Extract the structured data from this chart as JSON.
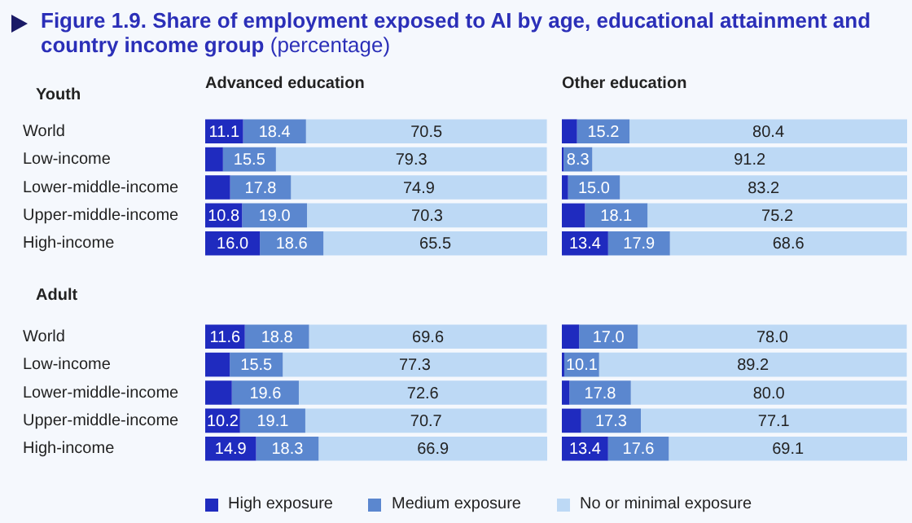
{
  "chart_data": [
    {
      "type": "bar",
      "orientation": "horizontal",
      "stacked": true,
      "title": "Figure 1.9. Share of employment exposed to AI by age, educational attainment and country income group",
      "subtitle": "(percentage)",
      "x2label": "Advanced education",
      "ylabel": "Youth",
      "tick_labels": "y",
      "legend": "bottom",
      "categories": [
        "World",
        "Low-income",
        "Lower-middle-income",
        "Upper-middle-income",
        "High-income"
      ],
      "series": [
        {
          "name": "High exposure",
          "color": "#1f2bbf",
          "values": [
            11.1,
            5.2,
            7.3,
            10.8,
            16.0
          ],
          "value_labels": [
            "11.1",
            null,
            null,
            "10.8",
            "16.0"
          ]
        },
        {
          "name": "Medium exposure",
          "color": "#5b87cf",
          "values": [
            18.4,
            15.5,
            17.8,
            19.0,
            18.6
          ],
          "value_labels": [
            "18.4",
            "15.5",
            "17.8",
            "19.0",
            "18.6"
          ]
        },
        {
          "name": "No or minimal exposure",
          "color": "#bdd9f5",
          "values": [
            70.5,
            79.3,
            74.9,
            70.3,
            65.5
          ],
          "value_labels": [
            "70.5",
            "79.3",
            "74.9",
            "70.3",
            "65.5"
          ]
        }
      ]
    },
    {
      "type": "bar",
      "orientation": "horizontal",
      "stacked": true,
      "x2label": "Other education",
      "tick_labels": false,
      "categories": [
        null,
        null,
        null,
        null,
        null
      ],
      "series": [
        {
          "color": "#1f2bbf",
          "values": [
            4.4,
            0.5,
            1.8,
            6.7,
            13.4
          ],
          "value_labels": [
            null,
            null,
            null,
            null,
            "13.4"
          ]
        },
        {
          "color": "#5b87cf",
          "values": [
            15.2,
            8.3,
            15.0,
            18.1,
            17.9
          ],
          "value_labels": [
            "15.2",
            "8.3",
            "15.0",
            "18.1",
            "17.9"
          ]
        },
        {
          "color": "#bdd9f5",
          "values": [
            80.4,
            91.2,
            83.2,
            75.2,
            68.6
          ],
          "value_labels": [
            "80.4",
            "91.2",
            "83.2",
            "75.2",
            "68.6"
          ]
        }
      ]
    },
    {
      "type": "bar",
      "orientation": "horizontal",
      "stacked": true,
      "ylabel": "Adult",
      "tick_labels": "y",
      "categories": [
        "World",
        "Low-income",
        "Lower-middle-income",
        "Upper-middle-income",
        "High-income"
      ],
      "series": [
        {
          "color": "#1f2bbf",
          "values": [
            11.6,
            7.2,
            7.8,
            10.2,
            14.9
          ],
          "value_labels": [
            "11.6",
            null,
            null,
            "10.2",
            "14.9"
          ]
        },
        {
          "color": "#5b87cf",
          "values": [
            18.8,
            15.5,
            19.6,
            19.1,
            18.3
          ],
          "value_labels": [
            "18.8",
            "15.5",
            "19.6",
            "19.1",
            "18.3"
          ]
        },
        {
          "color": "#bdd9f5",
          "values": [
            69.6,
            77.3,
            72.6,
            70.7,
            66.9
          ],
          "value_labels": [
            "69.6",
            "77.3",
            "72.6",
            "70.7",
            "66.9"
          ]
        }
      ]
    },
    {
      "type": "bar",
      "orientation": "horizontal",
      "stacked": true,
      "tick_labels": false,
      "categories": [
        null,
        null,
        null,
        null,
        null
      ],
      "series": [
        {
          "color": "#1f2bbf",
          "values": [
            5.0,
            0.7,
            2.2,
            5.6,
            13.4
          ],
          "value_labels": [
            null,
            null,
            null,
            null,
            "13.4"
          ]
        },
        {
          "color": "#5b87cf",
          "values": [
            17.0,
            10.1,
            17.8,
            17.3,
            17.6
          ],
          "value_labels": [
            "17.0",
            "10.1",
            "17.8",
            "17.3",
            "17.6"
          ]
        },
        {
          "color": "#bdd9f5",
          "values": [
            78.0,
            89.2,
            80.0,
            77.1,
            69.1
          ],
          "value_labels": [
            "78.0",
            "89.2",
            "80.0",
            "77.1",
            "69.1"
          ]
        }
      ]
    }
  ]
}
